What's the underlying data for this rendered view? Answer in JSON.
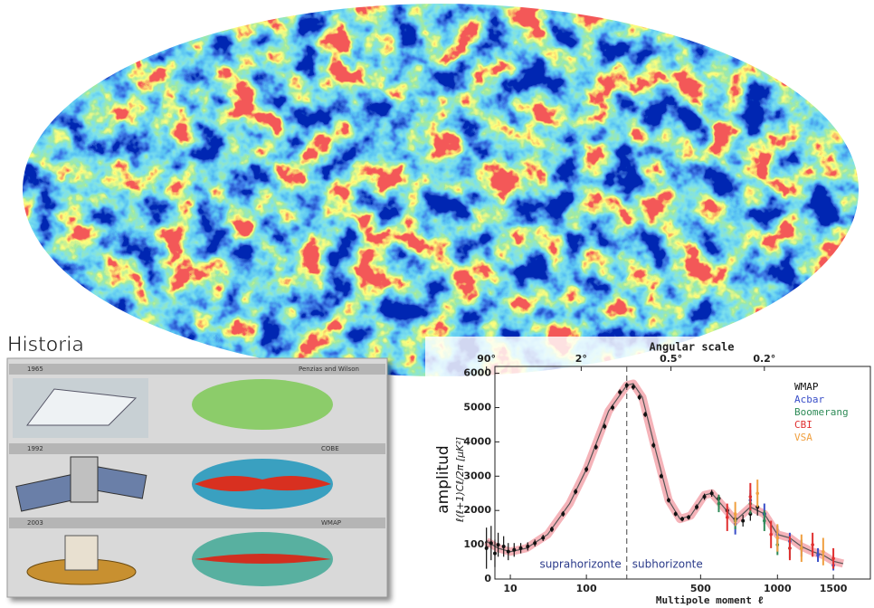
{
  "historia": {
    "title": "Historia",
    "rows": [
      {
        "year": "1965",
        "label": "Penzias and Wilson"
      },
      {
        "year": "1992",
        "label": "COBE"
      },
      {
        "year": "2003",
        "label": "WMAP"
      }
    ]
  },
  "chart_data": {
    "type": "scatter",
    "top_axis_label": "Angular scale",
    "top_ticks": [
      {
        "value": 90,
        "label": "90°"
      },
      {
        "value": 2,
        "label": "2°"
      },
      {
        "value": 0.5,
        "label": "0.5°"
      },
      {
        "value": 0.2,
        "label": "0.2°"
      }
    ],
    "ylabel_title": "amplitud",
    "ylabel": "ℓ(ℓ+1)Cℓ/2π [μK²]",
    "xlabel": "Multipole moment ℓ",
    "xlim": [
      4,
      1900
    ],
    "xticks": [
      10,
      100,
      500,
      1000,
      1500
    ],
    "ylim": [
      0,
      6200
    ],
    "yticks": [
      0,
      1000,
      2000,
      3000,
      4000,
      5000,
      6000
    ],
    "legend": "upper right",
    "divider_x": 200,
    "annotations": [
      "suprahorizonte",
      "subhorizonte"
    ],
    "model": {
      "color": "#555555",
      "band_color": "#f2a0a8",
      "x": [
        2,
        5,
        10,
        20,
        40,
        70,
        100,
        150,
        200,
        220,
        250,
        300,
        350,
        400,
        450,
        520,
        560,
        620,
        700,
        800,
        900,
        1000,
        1100,
        1200,
        1300,
        1400,
        1500,
        1600
      ],
      "values": [
        1100,
        900,
        800,
        900,
        1300,
        2200,
        3200,
        4900,
        5650,
        5700,
        5300,
        3700,
        2300,
        1750,
        1850,
        2450,
        2500,
        2150,
        1700,
        2100,
        1900,
        1300,
        1200,
        950,
        800,
        700,
        520,
        450
      ]
    },
    "series": [
      {
        "name": "WMAP",
        "color": "#111111",
        "x": [
          2,
          3,
          4,
          5,
          7,
          9,
          12,
          16,
          21,
          27,
          35,
          45,
          60,
          80,
          100,
          120,
          140,
          160,
          180,
          200,
          220,
          240,
          260,
          290,
          320,
          350,
          380,
          410,
          440,
          480,
          520,
          560,
          600,
          650,
          700,
          750,
          800,
          850,
          900
        ],
        "values": [
          900,
          1050,
          750,
          1000,
          950,
          800,
          850,
          900,
          950,
          1050,
          1200,
          1450,
          1900,
          2550,
          3200,
          3850,
          4450,
          5000,
          5450,
          5650,
          5600,
          5300,
          4800,
          3900,
          3000,
          2300,
          1900,
          1750,
          1800,
          2100,
          2400,
          2500,
          2350,
          2000,
          1750,
          1700,
          1900,
          2100,
          1900
        ],
        "errors": [
          600,
          500,
          400,
          350,
          300,
          250,
          200,
          150,
          120,
          100,
          90,
          80,
          80,
          80,
          80,
          80,
          80,
          80,
          80,
          80,
          80,
          80,
          80,
          80,
          70,
          70,
          70,
          70,
          70,
          80,
          90,
          100,
          110,
          120,
          140,
          170,
          200,
          250,
          300
        ]
      },
      {
        "name": "Acbar",
        "color": "#3a4fc8",
        "x": [
          700,
          800,
          900,
          1000,
          1100,
          1200,
          1350,
          1500
        ],
        "values": [
          1600,
          2300,
          1900,
          1300,
          1100,
          900,
          700,
          400
        ],
        "errors": [
          300,
          300,
          300,
          250,
          250,
          250,
          200,
          150
        ]
      },
      {
        "name": "Boomerang",
        "color": "#2e8b57",
        "x": [
          600,
          700,
          800,
          900,
          1000,
          1100
        ],
        "values": [
          2200,
          1700,
          2200,
          1700,
          1000,
          900
        ],
        "errors": [
          250,
          250,
          300,
          300,
          300,
          300
        ]
      },
      {
        "name": "CBI",
        "color": "#e03030",
        "x": [
          650,
          800,
          950,
          1100,
          1300,
          1500
        ],
        "values": [
          1800,
          2400,
          1300,
          900,
          1000,
          600
        ],
        "errors": [
          400,
          400,
          400,
          350,
          350,
          300
        ]
      },
      {
        "name": "VSA",
        "color": "#f0a040",
        "x": [
          700,
          850,
          1000,
          1200,
          1400
        ],
        "values": [
          1900,
          2500,
          1200,
          900,
          800
        ],
        "errors": [
          350,
          400,
          400,
          400,
          400
        ]
      }
    ]
  }
}
